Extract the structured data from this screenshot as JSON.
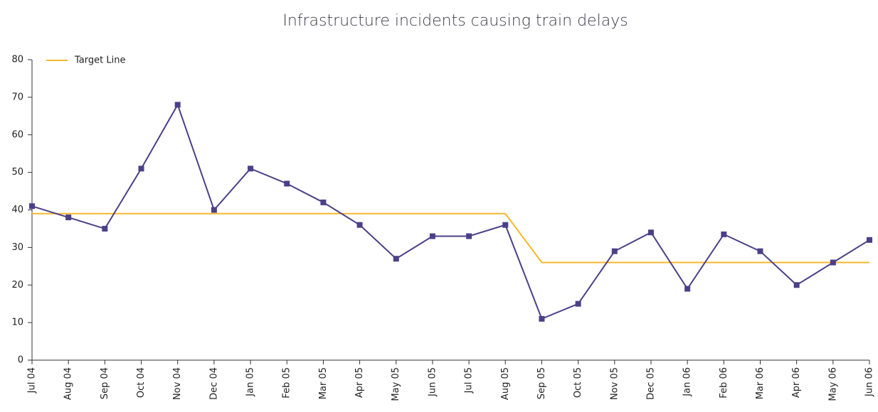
{
  "chart_data": {
    "type": "line",
    "title": "Infrastructure incidents causing train delays",
    "categories": [
      "Jul 04",
      "Aug 04",
      "Sep 04",
      "Oct 04",
      "Nov 04",
      "Dec 04",
      "Jan 05",
      "Feb 05",
      "Mar 05",
      "Apr 05",
      "May 05",
      "Jun 05",
      "Jul 05",
      "Aug 05",
      "Sep 05",
      "Oct 05",
      "Nov 05",
      "Dec 05",
      "Jan 06",
      "Feb 06",
      "Mar 06",
      "Apr 06",
      "May 06",
      "Jun 06"
    ],
    "series": [
      {
        "color": "#4b4088",
        "markers": true,
        "values": [
          41,
          38,
          35,
          51,
          68,
          40,
          51,
          47,
          42,
          36,
          27,
          33,
          33,
          36,
          11,
          15,
          29,
          34,
          19,
          33.5,
          29,
          20,
          26,
          32
        ]
      },
      {
        "name": "Target Line",
        "color": "#f5b82e",
        "markers": false,
        "values": [
          39,
          39,
          39,
          39,
          39,
          39,
          39,
          39,
          39,
          39,
          39,
          39,
          39,
          39,
          26,
          26,
          26,
          26,
          26,
          26,
          26,
          26,
          26,
          26
        ]
      }
    ],
    "ylim": [
      0,
      80
    ],
    "yticks": [
      0,
      10,
      20,
      30,
      40,
      50,
      60,
      70,
      80
    ],
    "grid": false,
    "legend": "top-left"
  }
}
